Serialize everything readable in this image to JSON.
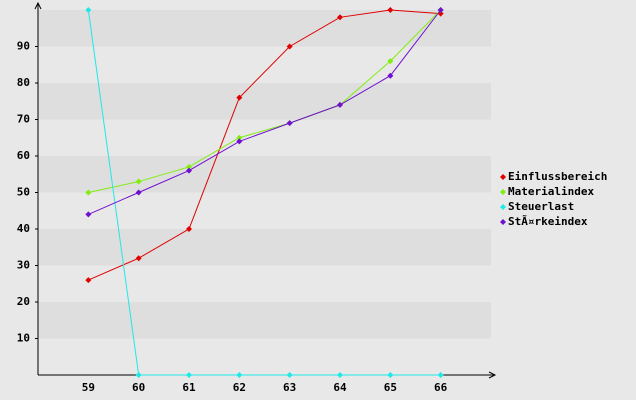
{
  "chart_data": {
    "type": "line",
    "categories": [
      "59",
      "60",
      "61",
      "62",
      "63",
      "64",
      "65",
      "66"
    ],
    "series": [
      {
        "name": "Einflussbereich",
        "color": "#e00000",
        "values": [
          26,
          32,
          40,
          76,
          90,
          98,
          100,
          99
        ]
      },
      {
        "name": "Materialindex",
        "color": "#80ee10",
        "values": [
          50,
          53,
          57,
          65,
          69,
          74,
          86,
          100
        ]
      },
      {
        "name": "Steuerlast",
        "color": "#20e8e8",
        "values": [
          100,
          0,
          0,
          0,
          0,
          0,
          0,
          0
        ]
      },
      {
        "name": "StÃ¤rkeindex",
        "color": "#7010d0",
        "values": [
          44,
          50,
          56,
          64,
          69,
          74,
          82,
          100
        ]
      }
    ],
    "ylim": [
      0,
      100
    ],
    "yticks": [
      10,
      20,
      30,
      40,
      50,
      60,
      70,
      80,
      90
    ],
    "grid": true,
    "legend": "right"
  }
}
